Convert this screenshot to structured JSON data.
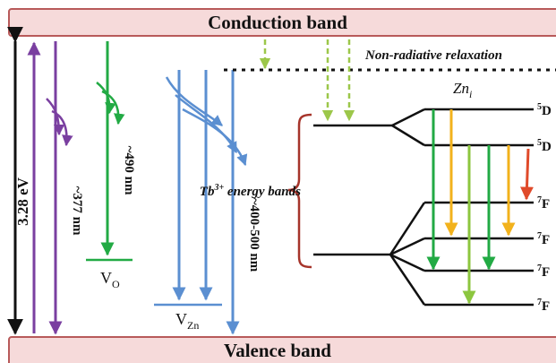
{
  "bands": {
    "conduction": "Conduction band",
    "valence": "Valence band"
  },
  "labels": {
    "bandgap": "3.28 eV",
    "non_radiative": "Non-radiative relaxation",
    "zn_i_base": "Zn",
    "zn_i_sub": "i",
    "vo_base": "V",
    "vo_sub": "O",
    "vzn_base": "V",
    "vzn_sub": "Zn",
    "wl_377": "~377 nm",
    "wl_490": "~490 nm",
    "wl_400_500": "~400-500 nm",
    "tb_prefix": "Tb",
    "tb_sup": "3+",
    "tb_suffix": " energy bands"
  },
  "levels": [
    {
      "sup": "5",
      "base": "D"
    },
    {
      "sup": "5",
      "base": "D"
    },
    {
      "sup": "7",
      "base": "F"
    },
    {
      "sup": "7",
      "base": "F"
    },
    {
      "sup": "7",
      "base": "F"
    },
    {
      "sup": "7",
      "base": "F"
    }
  ],
  "colors": {
    "band_fill": "#f6dada",
    "band_stroke": "#b85a5a",
    "purple": "#7a3fa0",
    "green": "#22aa44",
    "blue": "#5b8fd1",
    "yellow": "#f2b21c",
    "light_green": "#8cc63f",
    "dashed_green": "#9cc74a",
    "red": "#e04a2a",
    "brace": "#a6342a"
  }
}
